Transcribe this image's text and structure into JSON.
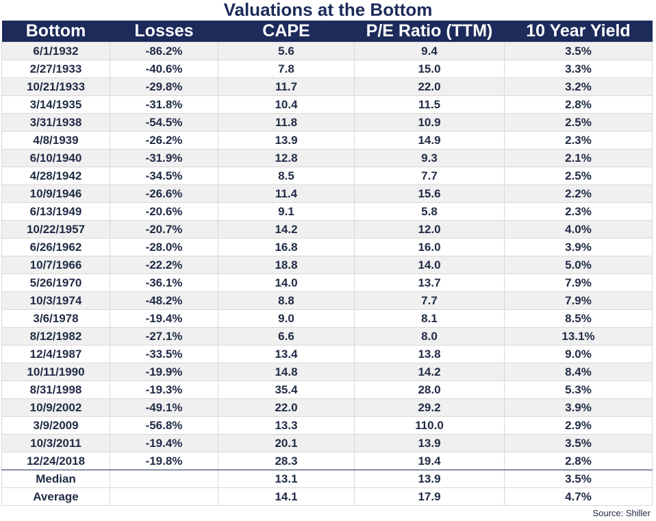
{
  "title": "Valuations at the Bottom",
  "headers": [
    "Bottom",
    "Losses",
    "CAPE",
    "P/E Ratio (TTM)",
    "10 Year Yield"
  ],
  "rows": [
    [
      "6/1/1932",
      "-86.2%",
      "5.6",
      "9.4",
      "3.5%"
    ],
    [
      "2/27/1933",
      "-40.6%",
      "7.8",
      "15.0",
      "3.3%"
    ],
    [
      "10/21/1933",
      "-29.8%",
      "11.7",
      "22.0",
      "3.2%"
    ],
    [
      "3/14/1935",
      "-31.8%",
      "10.4",
      "11.5",
      "2.8%"
    ],
    [
      "3/31/1938",
      "-54.5%",
      "11.8",
      "10.9",
      "2.5%"
    ],
    [
      "4/8/1939",
      "-26.2%",
      "13.9",
      "14.9",
      "2.3%"
    ],
    [
      "6/10/1940",
      "-31.9%",
      "12.8",
      "9.3",
      "2.1%"
    ],
    [
      "4/28/1942",
      "-34.5%",
      "8.5",
      "7.7",
      "2.5%"
    ],
    [
      "10/9/1946",
      "-26.6%",
      "11.4",
      "15.6",
      "2.2%"
    ],
    [
      "6/13/1949",
      "-20.6%",
      "9.1",
      "5.8",
      "2.3%"
    ],
    [
      "10/22/1957",
      "-20.7%",
      "14.2",
      "12.0",
      "4.0%"
    ],
    [
      "6/26/1962",
      "-28.0%",
      "16.8",
      "16.0",
      "3.9%"
    ],
    [
      "10/7/1966",
      "-22.2%",
      "18.8",
      "14.0",
      "5.0%"
    ],
    [
      "5/26/1970",
      "-36.1%",
      "14.0",
      "13.7",
      "7.9%"
    ],
    [
      "10/3/1974",
      "-48.2%",
      "8.8",
      "7.7",
      "7.9%"
    ],
    [
      "3/6/1978",
      "-19.4%",
      "9.0",
      "8.1",
      "8.5%"
    ],
    [
      "8/12/1982",
      "-27.1%",
      "6.6",
      "8.0",
      "13.1%"
    ],
    [
      "12/4/1987",
      "-33.5%",
      "13.4",
      "13.8",
      "9.0%"
    ],
    [
      "10/11/1990",
      "-19.9%",
      "14.8",
      "14.2",
      "8.4%"
    ],
    [
      "8/31/1998",
      "-19.3%",
      "35.4",
      "28.0",
      "5.3%"
    ],
    [
      "10/9/2002",
      "-49.1%",
      "22.0",
      "29.2",
      "3.9%"
    ],
    [
      "3/9/2009",
      "-56.8%",
      "13.3",
      "110.0",
      "2.9%"
    ],
    [
      "10/3/2011",
      "-19.4%",
      "20.1",
      "13.9",
      "3.5%"
    ],
    [
      "12/24/2018",
      "-19.8%",
      "28.3",
      "19.4",
      "2.8%"
    ]
  ],
  "summary": [
    [
      "Median",
      "",
      "13.1",
      "13.9",
      "3.5%"
    ],
    [
      "Average",
      "",
      "14.1",
      "17.9",
      "4.7%"
    ]
  ],
  "source": "Source: Shiller"
}
